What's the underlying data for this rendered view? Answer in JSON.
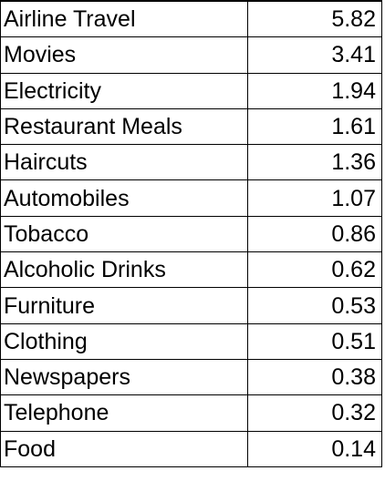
{
  "table": {
    "rows": [
      {
        "item": "Airline Travel",
        "value": "5.82"
      },
      {
        "item": "Movies",
        "value": "3.41"
      },
      {
        "item": "Electricity",
        "value": "1.94"
      },
      {
        "item": "Restaurant Meals",
        "value": "1.61"
      },
      {
        "item": "Haircuts",
        "value": "1.36"
      },
      {
        "item": "Automobiles",
        "value": "1.07"
      },
      {
        "item": "Tobacco",
        "value": "0.86"
      },
      {
        "item": "Alcoholic Drinks",
        "value": "0.62"
      },
      {
        "item": "Furniture",
        "value": "0.53"
      },
      {
        "item": "Clothing",
        "value": "0.51"
      },
      {
        "item": "Newspapers",
        "value": "0.38"
      },
      {
        "item": "Telephone",
        "value": "0.32"
      },
      {
        "item": "Food",
        "value": "0.14"
      }
    ]
  }
}
